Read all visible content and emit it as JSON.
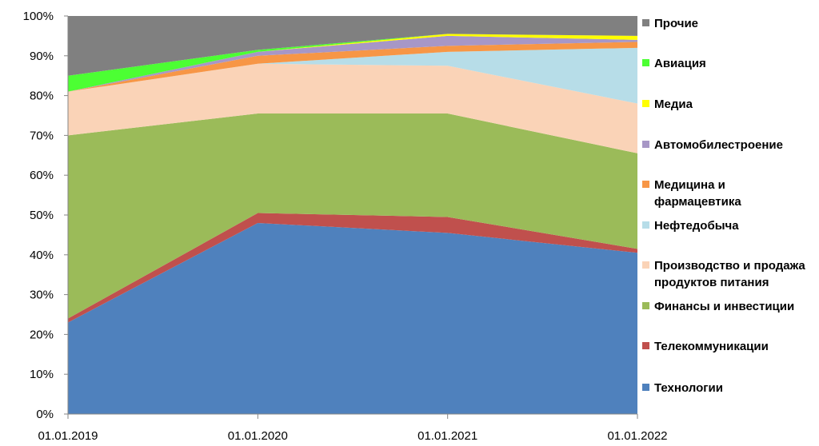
{
  "chart_data": {
    "type": "area",
    "stacked": true,
    "normalized": true,
    "categories": [
      "01.01.2019",
      "01.01.2020",
      "01.01.2021",
      "01.01.2022"
    ],
    "ylim": [
      0,
      100
    ],
    "yticks": [
      "0%",
      "10%",
      "20%",
      "30%",
      "40%",
      "50%",
      "60%",
      "70%",
      "80%",
      "90%",
      "100%"
    ],
    "grid": false,
    "legend_position": "right",
    "series": [
      {
        "name": "Технологии",
        "values": [
          23,
          48,
          45.5,
          40.5
        ],
        "color": "#4F81BD"
      },
      {
        "name": "Телекоммуникации",
        "values": [
          1,
          2.5,
          4,
          1
        ],
        "color": "#C0504D"
      },
      {
        "name": "Финансы и инвестиции",
        "values": [
          46,
          25,
          26,
          24
        ],
        "color": "#9BBB59"
      },
      {
        "name": "Производство и продажа продуктов питания",
        "values": [
          11,
          12.5,
          12,
          12.5
        ],
        "color": "#FAD3B7"
      },
      {
        "name": "Нефтедобыча",
        "values": [
          0,
          0,
          3.5,
          14
        ],
        "color": "#B7DDE8"
      },
      {
        "name": "Медицина и фармацевтика",
        "values": [
          0,
          2,
          1.5,
          1.5
        ],
        "color": "#F79646"
      },
      {
        "name": "Автомобилестроение",
        "values": [
          0,
          1,
          2.5,
          0.5
        ],
        "color": "#A797C6"
      },
      {
        "name": "Медиа",
        "values": [
          0,
          0,
          0.5,
          1
        ],
        "color": "#FFFF00"
      },
      {
        "name": "Авиация",
        "values": [
          4,
          0.5,
          0,
          0
        ],
        "color": "#4CFF33"
      },
      {
        "name": "Прочие",
        "values": [
          15,
          8.5,
          4.5,
          5
        ],
        "color": "#808080"
      }
    ],
    "legend": [
      {
        "lines": [
          "Прочие"
        ],
        "series": 9
      },
      {
        "lines": [
          "Авиация"
        ],
        "series": 8
      },
      {
        "lines": [
          "Медиа"
        ],
        "series": 7
      },
      {
        "lines": [
          "Автомобилестроение"
        ],
        "series": 6
      },
      {
        "lines": [
          "Медицина и",
          "фармацевтика"
        ],
        "series": 5
      },
      {
        "lines": [
          "Нефтедобыча"
        ],
        "series": 4
      },
      {
        "lines": [
          "Производство и продажа",
          "продуктов питания"
        ],
        "series": 3
      },
      {
        "lines": [
          "Финансы и инвестиции"
        ],
        "series": 2
      },
      {
        "lines": [
          "Телекоммуникации"
        ],
        "series": 1
      },
      {
        "lines": [
          "Технологии"
        ],
        "series": 0
      }
    ]
  }
}
